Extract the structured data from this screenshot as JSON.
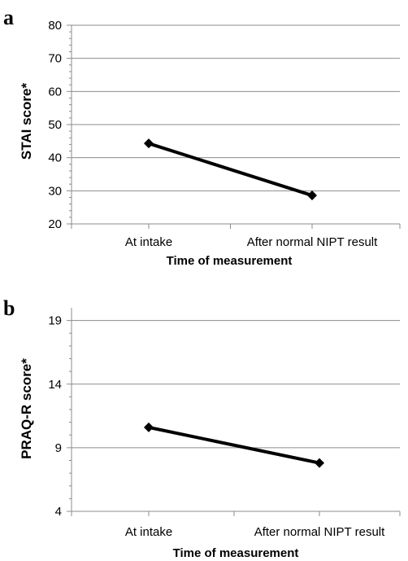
{
  "chart_data": [
    {
      "type": "line",
      "panel_label": "a",
      "categories": [
        "At intake",
        "After normal NIPT result"
      ],
      "values": [
        44.3,
        28.6
      ],
      "xlabel": "Time of measurement",
      "ylabel": "STAI score*",
      "ylim": [
        20,
        80
      ],
      "yticks": [
        20,
        30,
        40,
        50,
        60,
        70,
        80
      ],
      "grid": true,
      "marker": "diamond",
      "line_color": "#000000"
    },
    {
      "type": "line",
      "panel_label": "b",
      "categories": [
        "At intake",
        "After normal NIPT result"
      ],
      "values": [
        10.6,
        7.8
      ],
      "xlabel": "Time of measurement",
      "ylabel": "PRAQ-R score*",
      "ylim": [
        4,
        20
      ],
      "yticks": [
        4,
        9,
        14,
        19
      ],
      "grid": true,
      "marker": "diamond",
      "line_color": "#000000"
    }
  ]
}
